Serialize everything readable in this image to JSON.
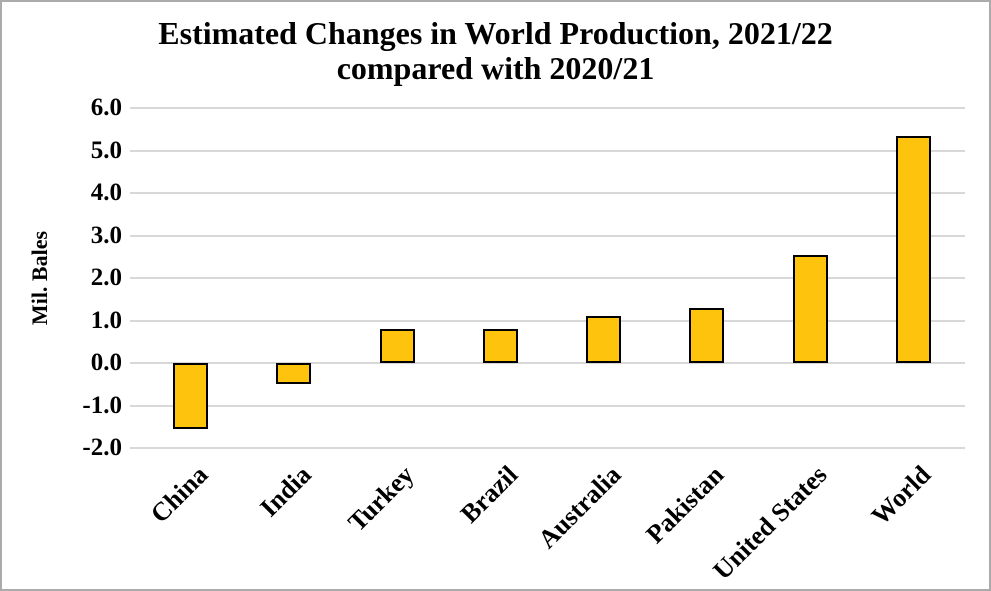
{
  "chart_data": {
    "type": "bar",
    "title": "Estimated Changes in World Production, 2021/22 compared with 2020/21",
    "title_lines": [
      "Estimated Changes in World Production, 2021/22",
      "compared with 2020/21"
    ],
    "xlabel": "",
    "ylabel": "Mil. Bales",
    "categories": [
      "China",
      "India",
      "Turkey",
      "Brazil",
      "Australia",
      "Pakistan",
      "United States",
      "World"
    ],
    "values": [
      -1.55,
      -0.5,
      0.8,
      0.8,
      1.1,
      1.3,
      2.55,
      5.35
    ],
    "ylim": [
      -2.0,
      6.0
    ],
    "ytick_step": 1.0,
    "ytick_labels": [
      "6.0",
      "5.0",
      "4.0",
      "3.0",
      "2.0",
      "1.0",
      "0.0",
      "-1.0",
      "-2.0"
    ],
    "grid": true,
    "legend": false,
    "bar_color": "#fec30d",
    "bar_border_color": "#000000",
    "gridline_color": "#d8d8d8",
    "background_color": "#ffffff",
    "text_color": "#000000"
  }
}
